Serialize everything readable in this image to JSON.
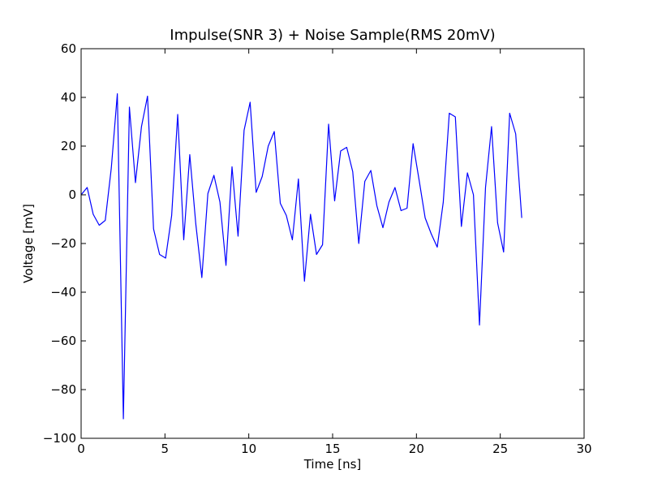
{
  "chart_data": {
    "type": "line",
    "title": "Impulse(SNR 3) + Noise Sample(RMS 20mV)",
    "xlabel": "Time [ns]",
    "ylabel": "Voltage [mV]",
    "xlim": [
      0,
      30
    ],
    "ylim": [
      -100,
      60
    ],
    "xticks": [
      0,
      5,
      10,
      15,
      20,
      25,
      30
    ],
    "yticks": [
      -100,
      -80,
      -60,
      -40,
      -20,
      0,
      20,
      40,
      60
    ],
    "grid": false,
    "legend": "none",
    "series": [
      {
        "color": "#0000ff",
        "x": [
          0.0,
          0.36,
          0.72,
          1.08,
          1.44,
          1.8,
          2.16,
          2.52,
          2.88,
          3.24,
          3.6,
          3.96,
          4.32,
          4.68,
          5.04,
          5.4,
          5.76,
          6.12,
          6.48,
          6.84,
          7.2,
          7.56,
          7.92,
          8.28,
          8.64,
          9.0,
          9.36,
          9.72,
          10.08,
          10.44,
          10.8,
          11.16,
          11.52,
          11.88,
          12.24,
          12.6,
          12.96,
          13.32,
          13.68,
          14.04,
          14.4,
          14.76,
          15.12,
          15.48,
          15.84,
          16.2,
          16.56,
          16.92,
          17.28,
          17.64,
          18.0,
          18.36,
          18.72,
          19.08,
          19.44,
          19.8,
          20.16,
          20.52,
          20.88,
          21.24,
          21.6,
          21.96,
          22.32,
          22.68,
          23.04,
          23.4,
          23.76,
          24.12,
          24.48,
          24.84,
          25.2,
          25.56,
          25.92,
          26.28
        ],
        "y": [
          0,
          3,
          -8,
          -12.5,
          -10.5,
          11,
          41.5,
          -92,
          36,
          5,
          28,
          40.5,
          -14,
          -24.5,
          -26,
          -8.5,
          33,
          -18.5,
          16.5,
          -12,
          -34,
          0.5,
          8,
          -3,
          -29,
          11.5,
          -17,
          26.5,
          38,
          1,
          7.5,
          20,
          26,
          -3.5,
          -8.5,
          -18.5,
          6.5,
          -35.5,
          -8,
          -24.5,
          -20.5,
          29,
          -2.5,
          18,
          19.5,
          9.5,
          -20,
          5.5,
          10,
          -4.5,
          -13.5,
          -3,
          3,
          -6.5,
          -5.5,
          21,
          6,
          -9.5,
          -16,
          -21.5,
          -3,
          33.5,
          32,
          -13,
          9,
          0,
          -53.5,
          3,
          28,
          -11.5,
          -23.5,
          33.5,
          25,
          -9.5
        ]
      }
    ]
  }
}
